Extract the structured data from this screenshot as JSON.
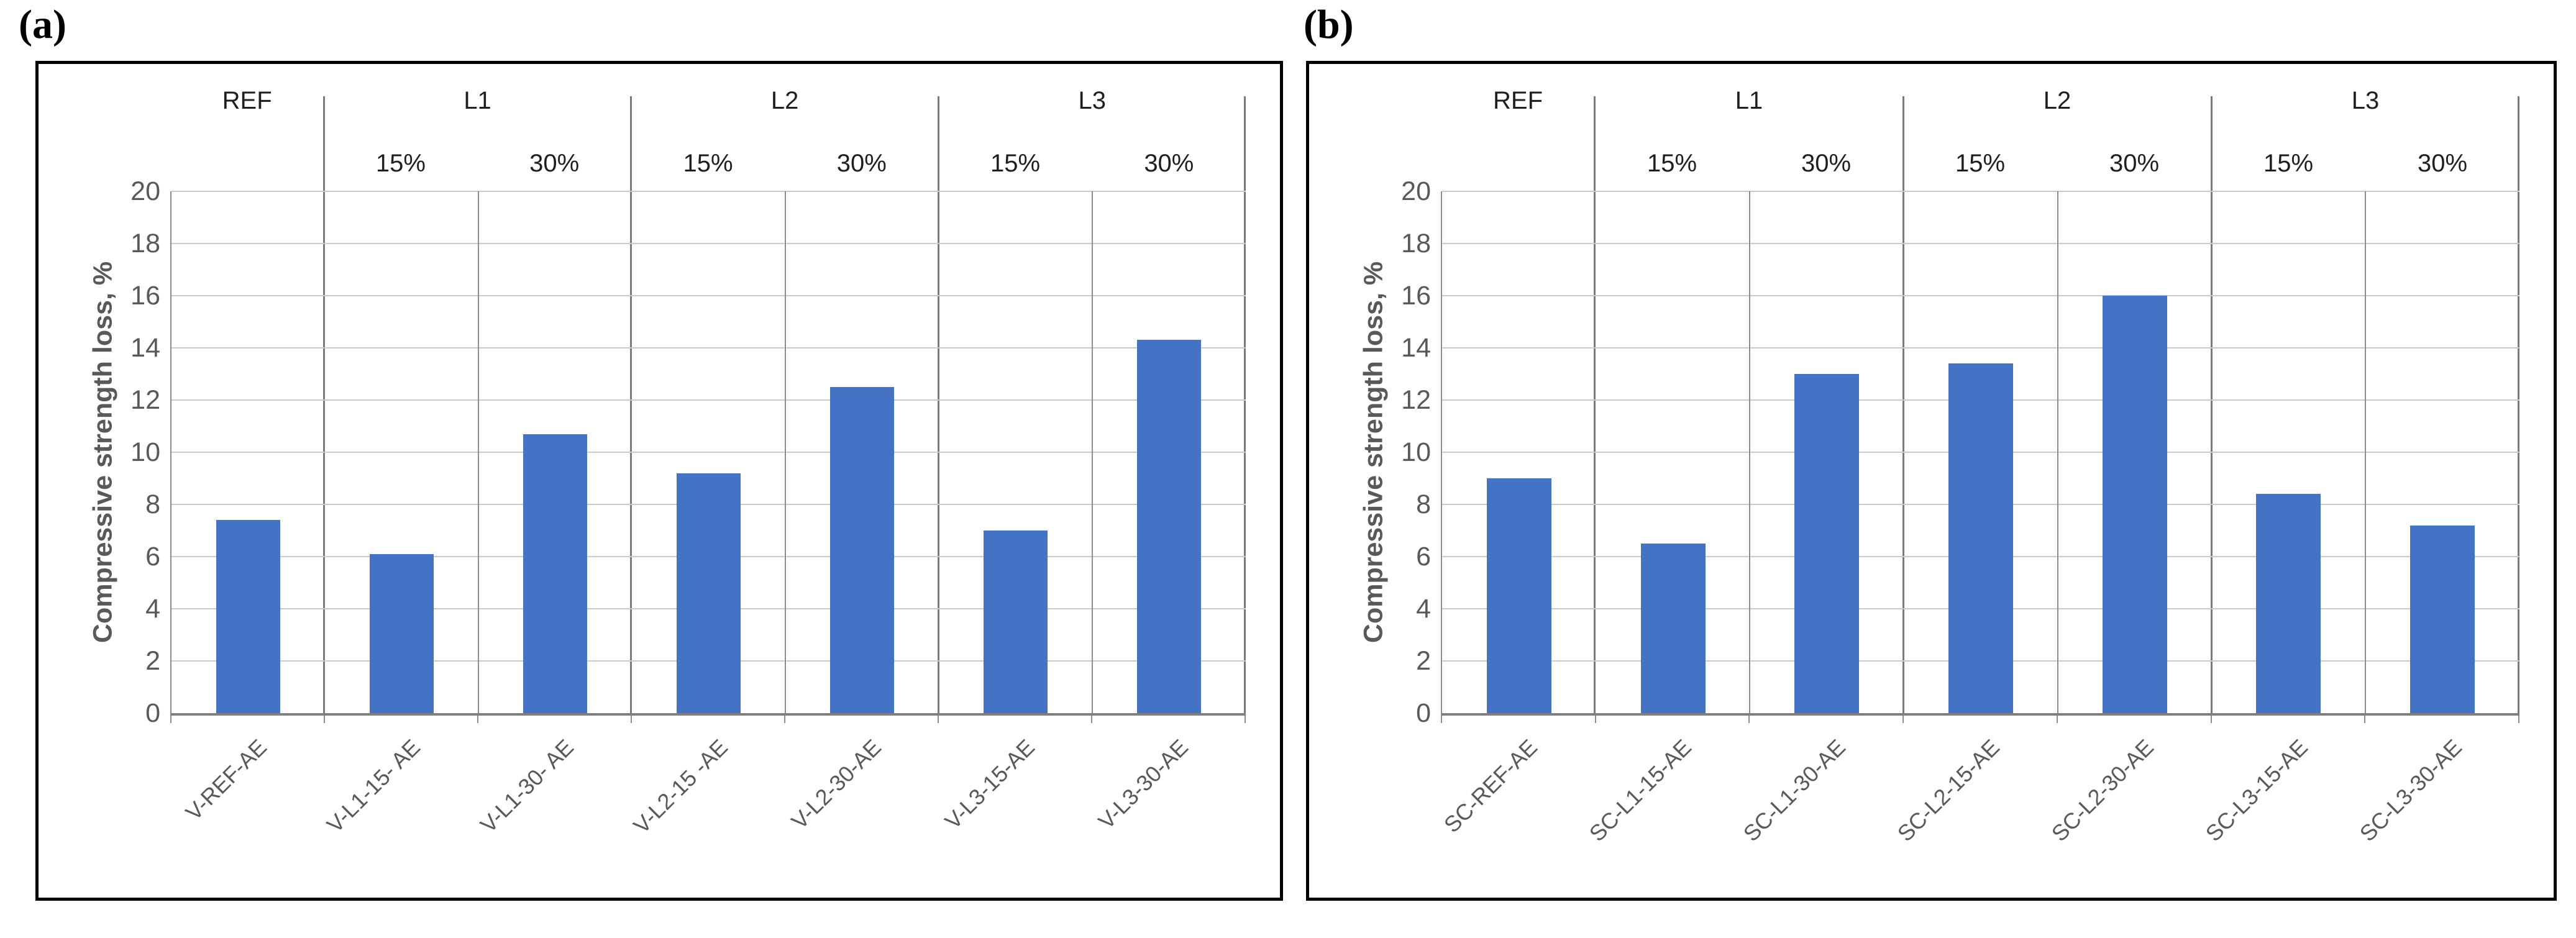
{
  "figure": {
    "background": "#ffffff"
  },
  "colors": {
    "bar": "#4472C4",
    "gridline": "#C9C9C9",
    "column_line": "#8C8C8C",
    "group_separator": "#7A7A7A",
    "axis_line": "#7F7F7F",
    "tick_text": "#595959",
    "category_text": "#595959",
    "header_text": "#1F1F1F",
    "box_border": "#000000"
  },
  "chart_data": [
    {
      "type": "bar",
      "panel_label": "(a)",
      "title": "",
      "xlabel": "",
      "ylabel": "Compressive strength loss, %",
      "ylim": [
        0,
        20
      ],
      "ytick_step": 2,
      "grid": true,
      "legend": "none",
      "groups": [
        {
          "label": "REF",
          "sublabels": []
        },
        {
          "label": "L1",
          "sublabels": [
            "15%",
            "30%"
          ]
        },
        {
          "label": "L2",
          "sublabels": [
            "15%",
            "30%"
          ]
        },
        {
          "label": "L3",
          "sublabels": [
            "15%",
            "30%"
          ]
        }
      ],
      "categories": [
        "V-REF-AE",
        "V-L1-15- AE",
        "V-L1-30- AE",
        "V-L2-15 -AE",
        "V-L2-30-AE",
        "V-L3-15-AE",
        "V-L3-30-AE"
      ],
      "values": [
        7.4,
        6.1,
        10.7,
        9.2,
        12.5,
        7.0,
        14.3
      ]
    },
    {
      "type": "bar",
      "panel_label": "(b)",
      "title": "",
      "xlabel": "",
      "ylabel": "Compressive strength loss, %",
      "ylim": [
        0,
        20
      ],
      "ytick_step": 2,
      "grid": true,
      "legend": "none",
      "groups": [
        {
          "label": "REF",
          "sublabels": []
        },
        {
          "label": "L1",
          "sublabels": [
            "15%",
            "30%"
          ]
        },
        {
          "label": "L2",
          "sublabels": [
            "15%",
            "30%"
          ]
        },
        {
          "label": "L3",
          "sublabels": [
            "15%",
            "30%"
          ]
        }
      ],
      "categories": [
        "SC-REF-AE",
        "SC-L1-15-AE",
        "SC-L1-30-AE",
        "SC-L2-15-AE",
        "SC-L2-30-AE",
        "SC-L3-15-AE",
        "SC-L3-30-AE"
      ],
      "values": [
        9.0,
        6.5,
        13.0,
        13.4,
        16.0,
        8.4,
        7.2
      ]
    }
  ]
}
